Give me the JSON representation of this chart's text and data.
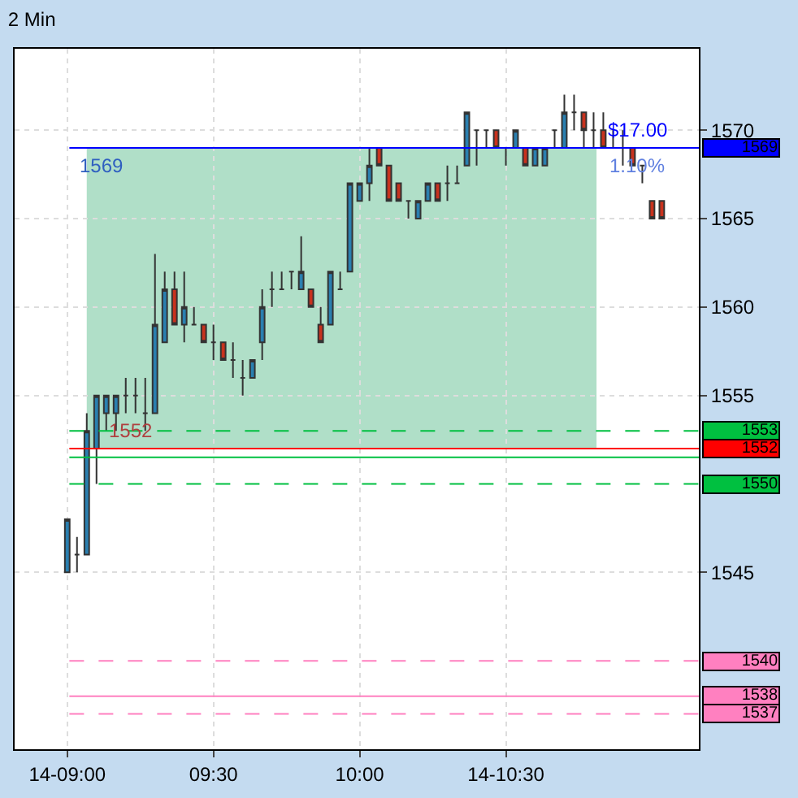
{
  "chart_data": {
    "type": "candlestick",
    "title": "2 Min",
    "x": [
      9,
      9.0333,
      9.0667,
      9.1,
      9.1333,
      9.1667,
      9.2,
      9.2333,
      9.2667,
      9.3,
      9.3333,
      9.3667,
      9.4,
      9.4333,
      9.4667,
      9.5,
      9.5333,
      9.5667,
      9.6,
      9.6333,
      9.6667,
      9.7,
      9.7333,
      9.7667,
      9.8,
      9.8333,
      9.8667,
      9.9,
      9.9333,
      9.9667,
      10,
      10.0333,
      10.0667,
      10.1,
      10.1333,
      10.1667,
      10.2,
      10.2333,
      10.2667,
      10.3,
      10.3333,
      10.3667,
      10.4,
      10.4333,
      10.4667,
      10.5,
      10.5333,
      10.5667,
      10.6,
      10.6333,
      10.6667,
      10.7,
      10.7333,
      10.7667,
      10.8,
      10.8333,
      10.8667,
      10.9,
      10.9333,
      10.9667,
      11,
      11.0333
    ],
    "ohlc": [
      [
        1545,
        1548,
        1545,
        1548
      ],
      [
        1546,
        1547,
        1545,
        1546
      ],
      [
        1546,
        1554,
        1546,
        1553
      ],
      [
        1552,
        1555,
        1550,
        1555
      ],
      [
        1554,
        1555,
        1553,
        1555
      ],
      [
        1554,
        1555,
        1553,
        1555
      ],
      [
        1555,
        1556,
        1554,
        1555
      ],
      [
        1555,
        1556,
        1554,
        1555
      ],
      [
        1554,
        1556,
        1553,
        1554
      ],
      [
        1554,
        1563,
        1554,
        1559
      ],
      [
        1558,
        1562,
        1558,
        1561
      ],
      [
        1561,
        1562,
        1559,
        1559
      ],
      [
        1559,
        1562,
        1558,
        1560
      ],
      [
        1559,
        1560,
        1559,
        1559
      ],
      [
        1559,
        1559,
        1558,
        1558
      ],
      [
        1558,
        1559,
        1557,
        1558
      ],
      [
        1558,
        1558,
        1557,
        1557
      ],
      [
        1557,
        1558,
        1556,
        1557
      ],
      [
        1556,
        1557,
        1555,
        1556
      ],
      [
        1556,
        1557,
        1556,
        1557
      ],
      [
        1558,
        1561,
        1557,
        1560
      ],
      [
        1561,
        1562,
        1560,
        1561
      ],
      [
        1561,
        1562,
        1561,
        1561
      ],
      [
        1562,
        1562,
        1561,
        1562
      ],
      [
        1561,
        1564,
        1561,
        1562
      ],
      [
        1561,
        1561,
        1560,
        1560
      ],
      [
        1559,
        1560,
        1558,
        1558
      ],
      [
        1559,
        1562,
        1559,
        1562
      ],
      [
        1561,
        1562,
        1561,
        1561
      ],
      [
        1562,
        1567,
        1562,
        1567
      ],
      [
        1566,
        1567,
        1566,
        1567
      ],
      [
        1567,
        1569,
        1566,
        1568
      ],
      [
        1569,
        1569,
        1568,
        1568
      ],
      [
        1568,
        1568,
        1566,
        1566
      ],
      [
        1567,
        1567,
        1566,
        1566
      ],
      [
        1566,
        1566,
        1565,
        1566
      ],
      [
        1565,
        1566,
        1565,
        1566
      ],
      [
        1566,
        1567,
        1566,
        1567
      ],
      [
        1567,
        1567,
        1566,
        1566
      ],
      [
        1567,
        1568,
        1566,
        1567
      ],
      [
        1567,
        1568,
        1567,
        1567
      ],
      [
        1568,
        1571,
        1568,
        1571
      ],
      [
        1570,
        1570,
        1568,
        1570
      ],
      [
        1570,
        1570,
        1569,
        1570
      ],
      [
        1570,
        1570,
        1569,
        1569
      ],
      [
        1569,
        1569,
        1568,
        1569
      ],
      [
        1569,
        1570,
        1569,
        1570
      ],
      [
        1569,
        1569,
        1568,
        1568
      ],
      [
        1568,
        1569,
        1568,
        1569
      ],
      [
        1568,
        1569,
        1568,
        1569
      ],
      [
        1570,
        1570,
        1569,
        1570
      ],
      [
        1569,
        1572,
        1569,
        1571
      ],
      [
        1571,
        1572,
        1570,
        1571
      ],
      [
        1571,
        1571,
        1569,
        1570
      ],
      [
        1570,
        1571,
        1569,
        1570
      ],
      [
        1570,
        1571,
        1569,
        1569
      ],
      [
        1569,
        1570,
        1569,
        1569
      ],
      [
        1569,
        1570,
        1568,
        1569
      ],
      [
        1569,
        1569,
        1568,
        1568
      ],
      [
        1568,
        1568,
        1567,
        1568
      ],
      [
        1566,
        1566,
        1565,
        1565
      ],
      [
        1566,
        1566,
        1565,
        1565
      ]
    ],
    "colors": [
      "#2a7fb0",
      "#333333",
      "#2a7fb0",
      "#2a7fb0",
      "#2a7fb0",
      "#2a7fb0",
      "#333333",
      "#333333",
      "#333333",
      "#2a7fb0",
      "#2a7fb0",
      "#c8321e",
      "#2a7fb0",
      "#333333",
      "#c8321e",
      "#333333",
      "#c8321e",
      "#333333",
      "#333333",
      "#2a7fb0",
      "#2a7fb0",
      "#333333",
      "#333333",
      "#333333",
      "#2a7fb0",
      "#c8321e",
      "#c8321e",
      "#2a7fb0",
      "#333333",
      "#2a7fb0",
      "#2a7fb0",
      "#2a7fb0",
      "#c8321e",
      "#c8321e",
      "#c8321e",
      "#333333",
      "#2a7fb0",
      "#2a7fb0",
      "#c8321e",
      "#333333",
      "#333333",
      "#2a7fb0",
      "#333333",
      "#333333",
      "#c8321e",
      "#333333",
      "#2a7fb0",
      "#c8321e",
      "#2a7fb0",
      "#2a7fb0",
      "#333333",
      "#2a7fb0",
      "#333333",
      "#c8321e",
      "#333333",
      "#c8321e",
      "#333333",
      "#333333",
      "#c8321e",
      "#333333",
      "#c8321e",
      "#c8321e"
    ],
    "xlim": [
      8.82,
      11.16
    ],
    "xticks": [
      {
        "value": 9,
        "label": "14-09:00"
      },
      {
        "value": 9.5,
        "label": "09:30"
      },
      {
        "value": 10,
        "label": "10:00"
      },
      {
        "value": 10.5,
        "label": "14-10:30"
      }
    ],
    "ylim": [
      1535,
      1574.6
    ],
    "yticks": [
      1545,
      1555,
      1560,
      1565,
      1570
    ],
    "grid": true,
    "bands": [
      {
        "axis": "y",
        "from": 1552,
        "to": 1569,
        "label": null,
        "color": "#b0dfc8"
      }
    ],
    "ref_lines": [
      {
        "axis": "y",
        "value": 1569,
        "label": "1569",
        "color": "#0000ff",
        "line_style": "solid"
      },
      {
        "axis": "y",
        "value": 1553,
        "label": "1553",
        "color": "#00c040",
        "line_style": "dashed"
      },
      {
        "axis": "y",
        "value": 1552,
        "label": "1552",
        "color": "#ff0000",
        "line_style": "solid"
      },
      {
        "axis": "y",
        "value": 1551.5,
        "label": null,
        "color": "#00c040",
        "line_style": "solid"
      },
      {
        "axis": "y",
        "value": 1550,
        "label": "1550",
        "color": "#00c040",
        "line_style": "dashed"
      },
      {
        "axis": "y",
        "value": 1540,
        "label": "1540",
        "color": "#ff80c0",
        "line_style": "dashed"
      },
      {
        "axis": "y",
        "value": 1538,
        "label": "1538",
        "color": "#ff80c0",
        "line_style": "solid"
      },
      {
        "axis": "y",
        "value": 1537,
        "label": "1537",
        "color": "#ff80c0",
        "line_style": "dashed"
      }
    ],
    "annotations": [
      {
        "text": "1569",
        "x": 9.12,
        "y": 1569
      },
      {
        "text": "1552",
        "x": 9.22,
        "y": 1552
      },
      {
        "text": "$17.00",
        "x": 10.95,
        "y": 1569
      },
      {
        "text": "1.10%",
        "x": 10.95,
        "y": 1569
      }
    ]
  }
}
